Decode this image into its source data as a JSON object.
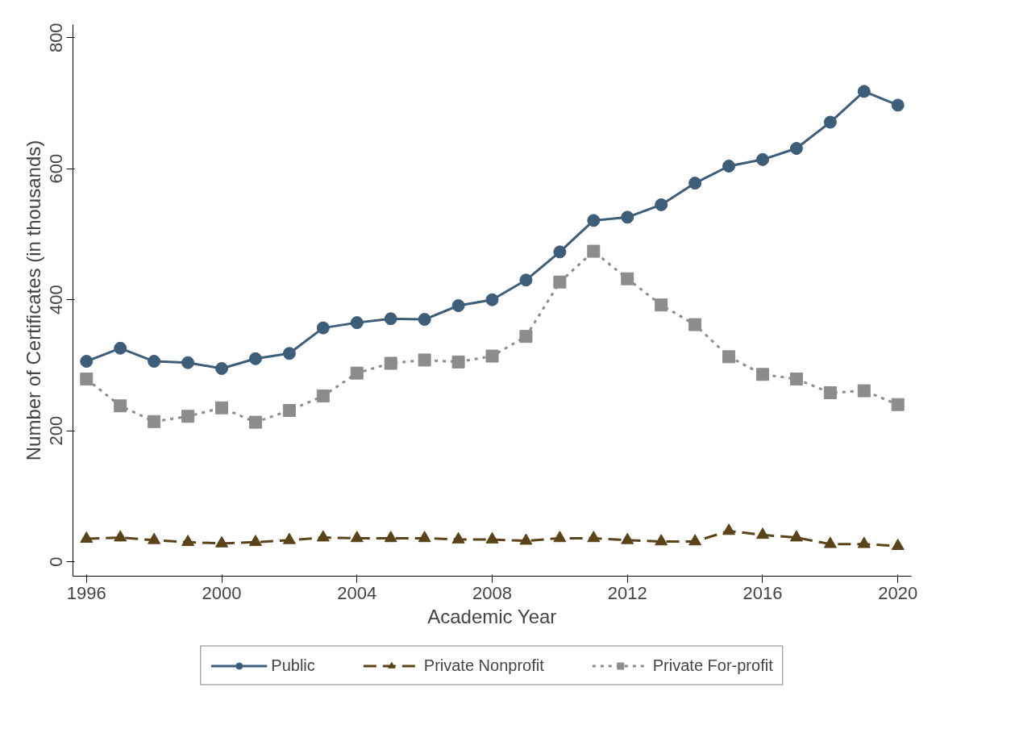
{
  "chart_data": {
    "type": "line",
    "xlabel": "Academic Year",
    "ylabel": "Number of Certificates (in thousands)",
    "x": [
      1996,
      1997,
      1998,
      1999,
      2000,
      2001,
      2002,
      2003,
      2004,
      2005,
      2006,
      2007,
      2008,
      2009,
      2010,
      2011,
      2012,
      2013,
      2014,
      2015,
      2016,
      2017,
      2018,
      2019,
      2020
    ],
    "series": [
      {
        "name": "Public",
        "color": "#3d5d78",
        "marker": "circle",
        "line_style": "solid",
        "values": [
          306,
          326,
          306,
          304,
          295,
          310,
          318,
          357,
          365,
          371,
          370,
          391,
          400,
          430,
          473,
          521,
          526,
          545,
          578,
          604,
          614,
          631,
          671,
          718,
          697
        ]
      },
      {
        "name": "Private Nonprofit",
        "color": "#5a4318",
        "marker": "triangle",
        "line_style": "dashed",
        "values": [
          35,
          37,
          33,
          30,
          28,
          30,
          33,
          37,
          36,
          36,
          36,
          34,
          34,
          32,
          36,
          36,
          33,
          31,
          31,
          47,
          41,
          37,
          27,
          27,
          24
        ]
      },
      {
        "name": "Private For-profit",
        "color": "#8c8c8c",
        "marker": "square",
        "line_style": "dotted",
        "values": [
          279,
          238,
          214,
          222,
          235,
          213,
          231,
          253,
          288,
          303,
          308,
          305,
          314,
          344,
          427,
          474,
          432,
          392,
          362,
          313,
          286,
          279,
          258,
          261,
          240
        ]
      }
    ],
    "xlim": [
      1995.6,
      2020.4
    ],
    "ylim": [
      -22,
      820
    ],
    "xticks": [
      1996,
      2000,
      2004,
      2008,
      2012,
      2016,
      2020
    ],
    "yticks": [
      0,
      200,
      400,
      600,
      800
    ],
    "grid": false,
    "legend": "bottom"
  }
}
